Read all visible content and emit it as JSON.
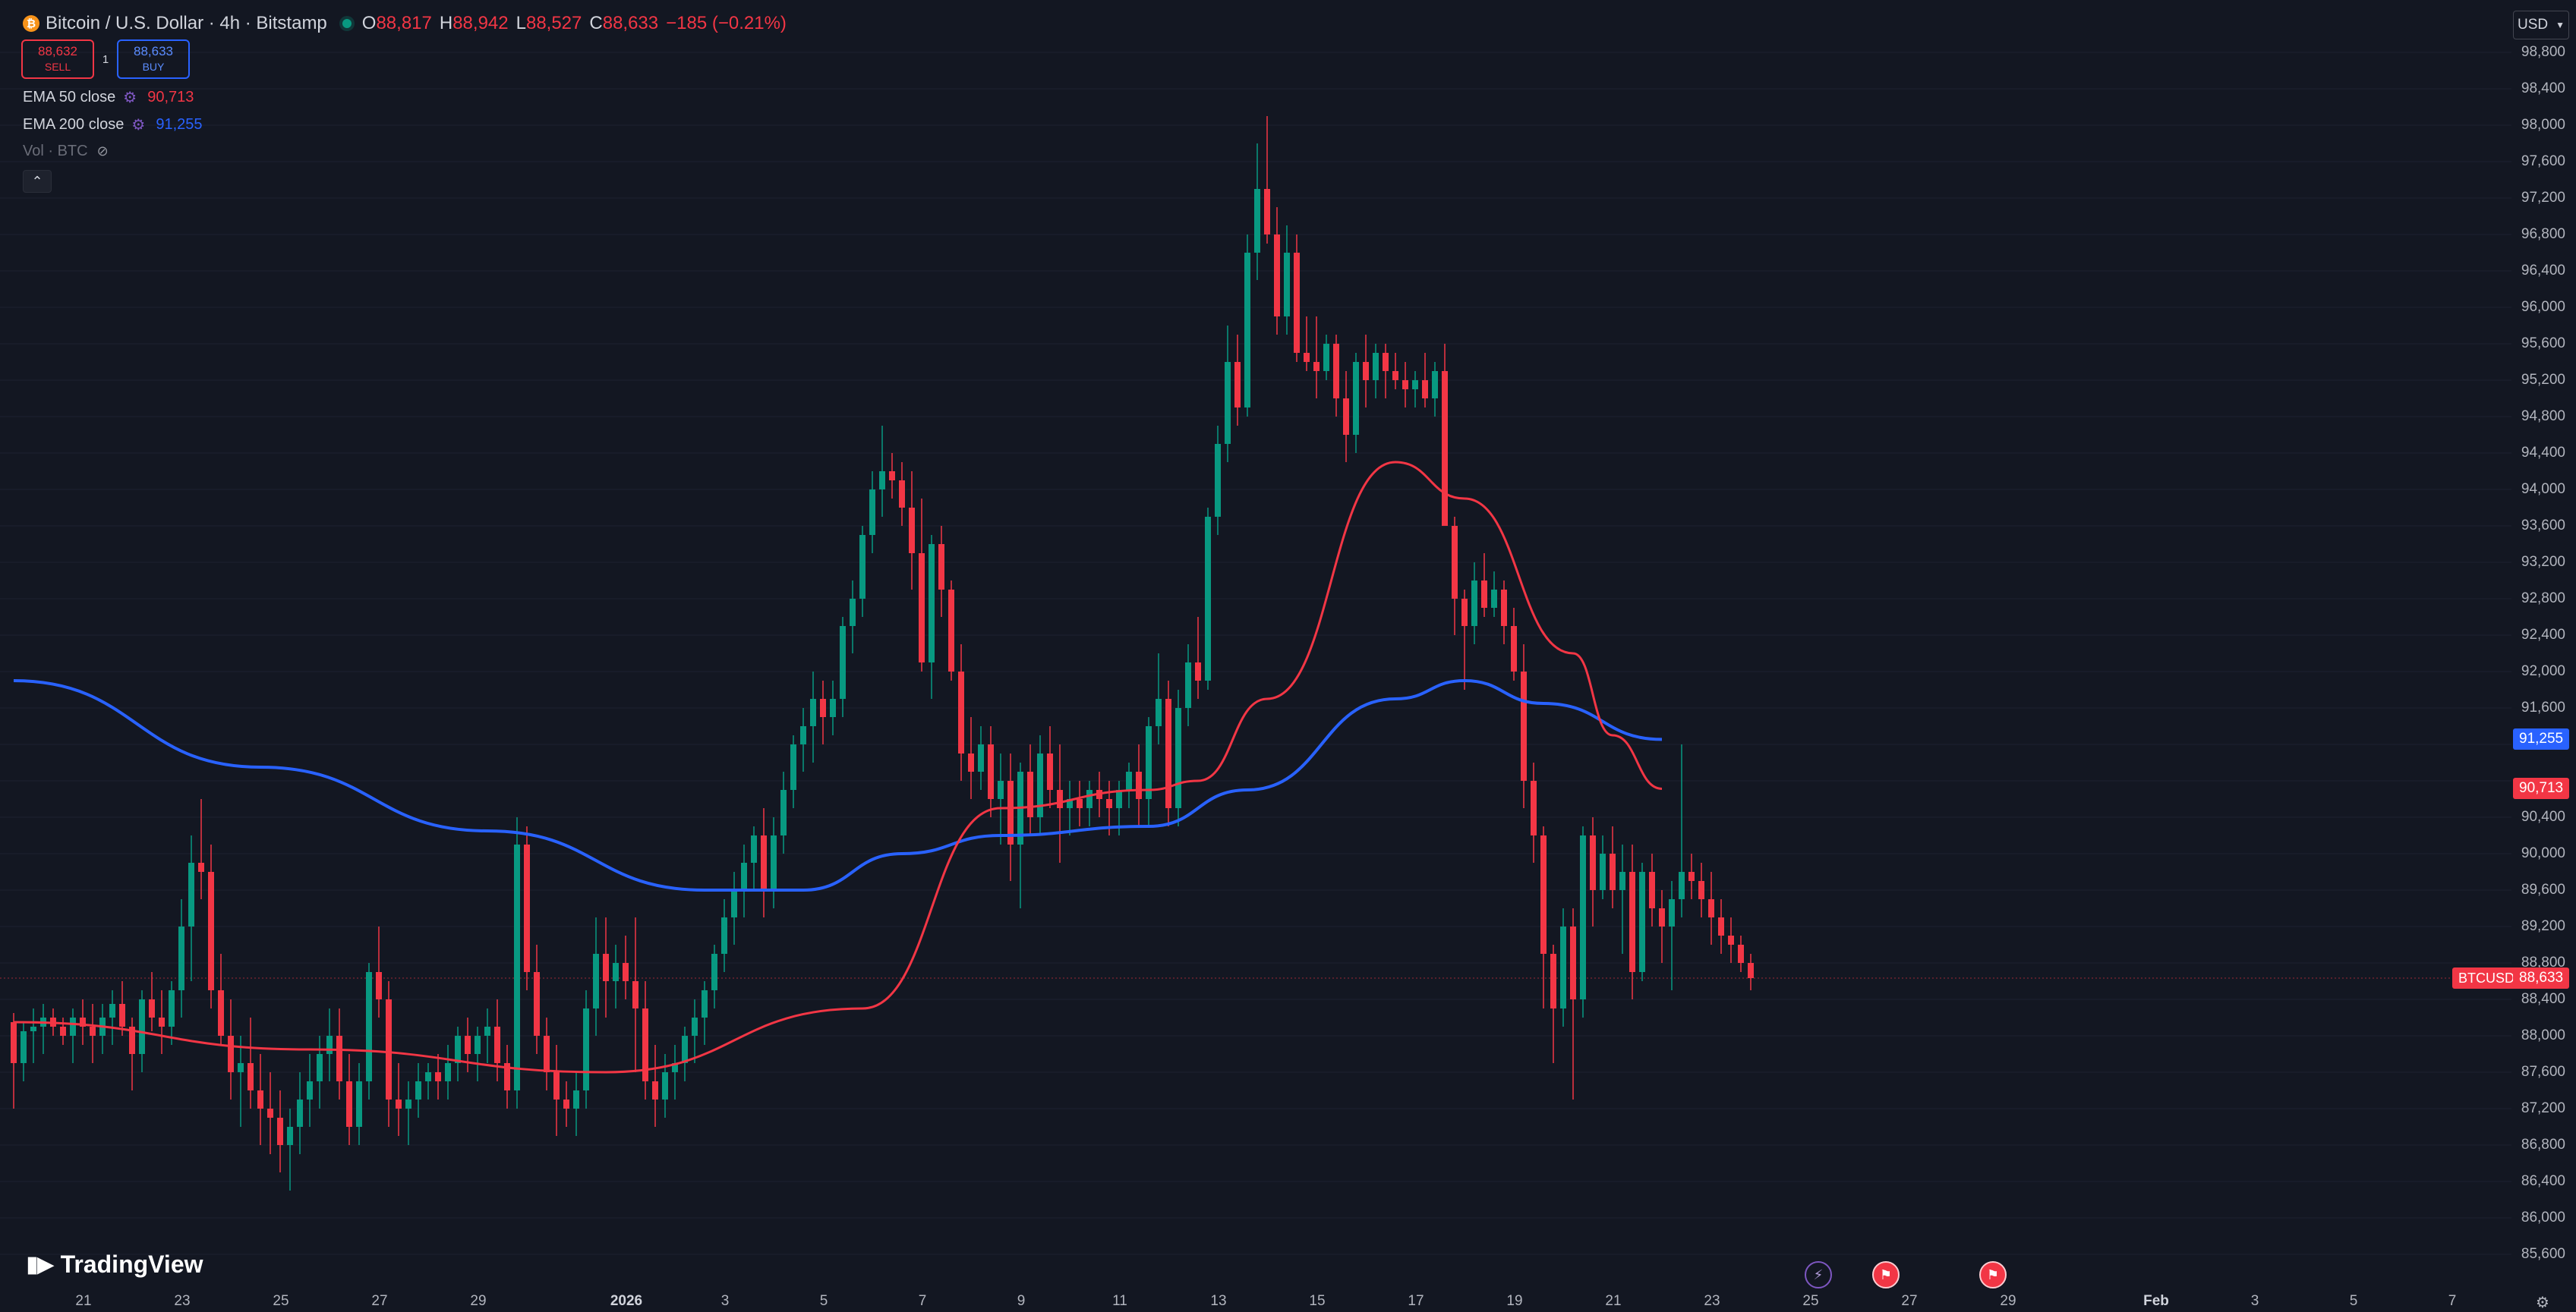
{
  "header": {
    "title": "Bitcoin / U.S. Dollar · 4h · Bitstamp",
    "symbol_icon": "bitcoin-icon",
    "open_key": "O",
    "open": "88,817",
    "high_key": "H",
    "high": "88,942",
    "low_key": "L",
    "low": "88,527",
    "close_key": "C",
    "close": "88,633",
    "change": "−185 (−0.21%)"
  },
  "trade": {
    "sell_price": "88,632",
    "sell_label": "SELL",
    "spread": "1",
    "buy_price": "88,633",
    "buy_label": "BUY"
  },
  "indicators": {
    "ema50": {
      "name": "EMA 50 close",
      "value": "90,713",
      "color": "#f23645"
    },
    "ema200": {
      "name": "EMA 200 close",
      "value": "91,255",
      "color": "#2962ff"
    },
    "volume": {
      "name": "Vol · BTC"
    }
  },
  "price_scale": {
    "currency": "USD",
    "ticks": [
      "98,800",
      "98,400",
      "98,000",
      "97,600",
      "97,200",
      "96,800",
      "96,400",
      "96,000",
      "95,600",
      "95,200",
      "94,800",
      "94,400",
      "94,000",
      "93,600",
      "93,200",
      "92,800",
      "92,400",
      "92,000",
      "91,600",
      "90,400",
      "90,000",
      "89,600",
      "89,200",
      "88,800",
      "88,400",
      "88,000",
      "87,600",
      "87,200",
      "86,800",
      "86,400",
      "86,000",
      "85,600"
    ],
    "ema200_label": "91,255",
    "ema50_label": "90,713",
    "last_price_label": "88,633",
    "symbol_label": "BTCUSD"
  },
  "time_axis": {
    "ticks": [
      "21",
      "23",
      "25",
      "27",
      "29",
      "2026",
      "3",
      "5",
      "7",
      "9",
      "11",
      "13",
      "15",
      "17",
      "19",
      "21",
      "23",
      "25",
      "27",
      "29",
      "Feb",
      "3",
      "5",
      "7"
    ]
  },
  "branding": {
    "logo_text": "TradingView"
  },
  "colors": {
    "up": "#089981",
    "down": "#f23645",
    "ema50": "#f23645",
    "ema200": "#2962ff",
    "background": "#131722"
  },
  "chart_data": {
    "type": "candlestick",
    "symbol": "BTCUSD",
    "timeframe": "4h",
    "ylim": [
      85400,
      99000
    ],
    "ohlc": [
      [
        88150,
        88250,
        87200,
        87700
      ],
      [
        87700,
        88150,
        87500,
        88050
      ],
      [
        88050,
        88300,
        87700,
        88100
      ],
      [
        88100,
        88350,
        87800,
        88200
      ],
      [
        88200,
        88300,
        88000,
        88100
      ],
      [
        88100,
        88200,
        87900,
        88000
      ],
      [
        88000,
        88300,
        87700,
        88200
      ],
      [
        88200,
        88400,
        87900,
        88100
      ],
      [
        88100,
        88350,
        87700,
        88000
      ],
      [
        88000,
        88350,
        87800,
        88200
      ],
      [
        88200,
        88500,
        87900,
        88350
      ],
      [
        88350,
        88600,
        88000,
        88100
      ],
      [
        88100,
        88200,
        87400,
        87800
      ],
      [
        87800,
        88500,
        87600,
        88400
      ],
      [
        88400,
        88700,
        88050,
        88200
      ],
      [
        88200,
        88500,
        87800,
        88100
      ],
      [
        88100,
        88600,
        87900,
        88500
      ],
      [
        88500,
        89500,
        88200,
        89200
      ],
      [
        89200,
        90200,
        88600,
        89900
      ],
      [
        89900,
        90600,
        89500,
        89800
      ],
      [
        89800,
        90100,
        88300,
        88500
      ],
      [
        88500,
        88900,
        87900,
        88000
      ],
      [
        88000,
        88400,
        87300,
        87600
      ],
      [
        87600,
        88000,
        87000,
        87700
      ],
      [
        87700,
        88200,
        87200,
        87400
      ],
      [
        87400,
        87800,
        86800,
        87200
      ],
      [
        87200,
        87600,
        86700,
        87100
      ],
      [
        87100,
        87400,
        86500,
        86800
      ],
      [
        86800,
        87200,
        86300,
        87000
      ],
      [
        87000,
        87600,
        86700,
        87300
      ],
      [
        87300,
        87800,
        87000,
        87500
      ],
      [
        87500,
        88000,
        87200,
        87800
      ],
      [
        87800,
        88300,
        87500,
        88000
      ],
      [
        88000,
        88300,
        87300,
        87500
      ],
      [
        87500,
        87800,
        86800,
        87000
      ],
      [
        87000,
        87700,
        86800,
        87500
      ],
      [
        87500,
        88800,
        87300,
        88700
      ],
      [
        88700,
        89200,
        88200,
        88400
      ],
      [
        88400,
        88600,
        87000,
        87300
      ],
      [
        87300,
        87700,
        86900,
        87200
      ],
      [
        87200,
        87500,
        86800,
        87300
      ],
      [
        87300,
        87700,
        87100,
        87500
      ],
      [
        87500,
        87700,
        87300,
        87600
      ],
      [
        87600,
        87800,
        87300,
        87500
      ],
      [
        87500,
        87900,
        87300,
        87700
      ],
      [
        87700,
        88100,
        87500,
        88000
      ],
      [
        88000,
        88200,
        87600,
        87800
      ],
      [
        87800,
        88100,
        87500,
        88000
      ],
      [
        88000,
        88300,
        87700,
        88100
      ],
      [
        88100,
        88400,
        87500,
        87700
      ],
      [
        87700,
        87900,
        87200,
        87400
      ],
      [
        87400,
        90400,
        87200,
        90100
      ],
      [
        90100,
        90300,
        88500,
        88700
      ],
      [
        88700,
        89000,
        87800,
        88000
      ],
      [
        88000,
        88200,
        87400,
        87600
      ],
      [
        87600,
        87900,
        86900,
        87300
      ],
      [
        87300,
        87500,
        87000,
        87200
      ],
      [
        87200,
        87600,
        86900,
        87400
      ],
      [
        87400,
        88500,
        87200,
        88300
      ],
      [
        88300,
        89300,
        88000,
        88900
      ],
      [
        88900,
        89300,
        88200,
        88600
      ],
      [
        88600,
        89000,
        88300,
        88800
      ],
      [
        88800,
        89100,
        88400,
        88600
      ],
      [
        88600,
        89300,
        87600,
        88300
      ],
      [
        88300,
        88600,
        87300,
        87500
      ],
      [
        87500,
        87900,
        87000,
        87300
      ],
      [
        87300,
        87800,
        87100,
        87600
      ],
      [
        87600,
        87900,
        87300,
        87700
      ],
      [
        87700,
        88100,
        87500,
        88000
      ],
      [
        88000,
        88400,
        87700,
        88200
      ],
      [
        88200,
        88600,
        87900,
        88500
      ],
      [
        88500,
        89000,
        88300,
        88900
      ],
      [
        88900,
        89500,
        88700,
        89300
      ],
      [
        89300,
        89800,
        89000,
        89600
      ],
      [
        89600,
        90100,
        89300,
        89900
      ],
      [
        89900,
        90300,
        89600,
        90200
      ],
      [
        90200,
        90500,
        89300,
        89600
      ],
      [
        89600,
        90400,
        89400,
        90200
      ],
      [
        90200,
        90900,
        90000,
        90700
      ],
      [
        90700,
        91300,
        90500,
        91200
      ],
      [
        91200,
        91600,
        90900,
        91400
      ],
      [
        91400,
        92000,
        91000,
        91700
      ],
      [
        91700,
        91900,
        91200,
        91500
      ],
      [
        91500,
        91900,
        91300,
        91700
      ],
      [
        91700,
        92600,
        91500,
        92500
      ],
      [
        92500,
        93000,
        92200,
        92800
      ],
      [
        92800,
        93600,
        92600,
        93500
      ],
      [
        93500,
        94200,
        93300,
        94000
      ],
      [
        94000,
        94700,
        93700,
        94200
      ],
      [
        94200,
        94400,
        93900,
        94100
      ],
      [
        94100,
        94300,
        93600,
        93800
      ],
      [
        93800,
        94200,
        92900,
        93300
      ],
      [
        93300,
        93900,
        92000,
        92100
      ],
      [
        92100,
        93500,
        91700,
        93400
      ],
      [
        93400,
        93600,
        92600,
        92900
      ],
      [
        92900,
        93000,
        91900,
        92000
      ],
      [
        92000,
        92300,
        90800,
        91100
      ],
      [
        91100,
        91500,
        90600,
        90900
      ],
      [
        90900,
        91400,
        90700,
        91200
      ],
      [
        91200,
        91400,
        90400,
        90600
      ],
      [
        90600,
        91100,
        90100,
        90800
      ],
      [
        90800,
        91100,
        89700,
        90100
      ],
      [
        90100,
        91000,
        89400,
        90900
      ],
      [
        90900,
        91200,
        90200,
        90400
      ],
      [
        90400,
        91300,
        90200,
        91100
      ],
      [
        91100,
        91400,
        90500,
        90700
      ],
      [
        90700,
        91200,
        89900,
        90500
      ],
      [
        90500,
        90800,
        90200,
        90600
      ],
      [
        90600,
        90800,
        90300,
        90500
      ],
      [
        90500,
        90800,
        90300,
        90700
      ],
      [
        90700,
        90900,
        90400,
        90600
      ],
      [
        90600,
        90800,
        90200,
        90500
      ],
      [
        90500,
        90800,
        90200,
        90700
      ],
      [
        90700,
        91000,
        90500,
        90900
      ],
      [
        90900,
        91200,
        90300,
        90600
      ],
      [
        90600,
        91500,
        90300,
        91400
      ],
      [
        91400,
        92200,
        91200,
        91700
      ],
      [
        91700,
        91900,
        90300,
        90500
      ],
      [
        90500,
        91800,
        90300,
        91600
      ],
      [
        91600,
        92300,
        91400,
        92100
      ],
      [
        92100,
        92600,
        91700,
        91900
      ],
      [
        91900,
        93800,
        91800,
        93700
      ],
      [
        93700,
        94700,
        93500,
        94500
      ],
      [
        94500,
        95800,
        94300,
        95400
      ],
      [
        95400,
        95700,
        94700,
        94900
      ],
      [
        94900,
        96800,
        94800,
        96600
      ],
      [
        96600,
        97800,
        96300,
        97300
      ],
      [
        97300,
        98100,
        96700,
        96800
      ],
      [
        96800,
        97100,
        95700,
        95900
      ],
      [
        95900,
        96900,
        95700,
        96600
      ],
      [
        96600,
        96800,
        95400,
        95500
      ],
      [
        95500,
        95900,
        95300,
        95400
      ],
      [
        95400,
        95900,
        95000,
        95300
      ],
      [
        95300,
        95700,
        95200,
        95600
      ],
      [
        95600,
        95700,
        94800,
        95000
      ],
      [
        95000,
        95300,
        94300,
        94600
      ],
      [
        94600,
        95500,
        94400,
        95400
      ],
      [
        95400,
        95700,
        94900,
        95200
      ],
      [
        95200,
        95600,
        95000,
        95500
      ],
      [
        95500,
        95600,
        95000,
        95300
      ],
      [
        95300,
        95500,
        95100,
        95200
      ],
      [
        95200,
        95400,
        94900,
        95100
      ],
      [
        95100,
        95300,
        94900,
        95200
      ],
      [
        95200,
        95500,
        94900,
        95000
      ],
      [
        95000,
        95400,
        94800,
        95300
      ],
      [
        95300,
        95600,
        93700,
        93600
      ],
      [
        93600,
        93700,
        92400,
        92800
      ],
      [
        92800,
        92900,
        91800,
        92500
      ],
      [
        92500,
        93200,
        92300,
        93000
      ],
      [
        93000,
        93300,
        92600,
        92700
      ],
      [
        92700,
        93100,
        92600,
        92900
      ],
      [
        92900,
        93000,
        92300,
        92500
      ],
      [
        92500,
        92700,
        91900,
        92000
      ],
      [
        92000,
        92300,
        90500,
        90800
      ],
      [
        90800,
        91000,
        89900,
        90200
      ],
      [
        90200,
        90300,
        88300,
        88900
      ],
      [
        88900,
        89000,
        87700,
        88300
      ],
      [
        88300,
        89400,
        88100,
        89200
      ],
      [
        89200,
        89400,
        87300,
        88400
      ],
      [
        88400,
        90300,
        88200,
        90200
      ],
      [
        90200,
        90400,
        89200,
        89600
      ],
      [
        89600,
        90200,
        89500,
        90000
      ],
      [
        90000,
        90300,
        89400,
        89600
      ],
      [
        89600,
        90100,
        88900,
        89800
      ],
      [
        89800,
        90100,
        88400,
        88700
      ],
      [
        88700,
        89900,
        88600,
        89800
      ],
      [
        89800,
        90000,
        89200,
        89400
      ],
      [
        89400,
        89600,
        88800,
        89200
      ],
      [
        89200,
        89700,
        88500,
        89500
      ],
      [
        89500,
        91200,
        89300,
        89800
      ],
      [
        89800,
        90000,
        89500,
        89700
      ],
      [
        89700,
        89900,
        89300,
        89500
      ],
      [
        89500,
        89800,
        89000,
        89300
      ],
      [
        89300,
        89500,
        88900,
        89100
      ],
      [
        89100,
        89300,
        88800,
        89000
      ],
      [
        89000,
        89100,
        88700,
        88800
      ],
      [
        88800,
        88900,
        88500,
        88633
      ]
    ],
    "ema50": [
      [
        0,
        88150
      ],
      [
        30,
        87850
      ],
      [
        60,
        87600
      ],
      [
        86,
        88300
      ],
      [
        100,
        90500
      ],
      [
        115,
        90700
      ],
      [
        120,
        90800
      ],
      [
        127,
        91700
      ],
      [
        140,
        94300
      ],
      [
        147,
        93900
      ],
      [
        158,
        92200
      ],
      [
        162,
        91300
      ],
      [
        167,
        90713
      ]
    ],
    "ema200": [
      [
        0,
        91900
      ],
      [
        25,
        90950
      ],
      [
        48,
        90250
      ],
      [
        70,
        89600
      ],
      [
        80,
        89600
      ],
      [
        90,
        90000
      ],
      [
        100,
        90200
      ],
      [
        115,
        90300
      ],
      [
        125,
        90700
      ],
      [
        140,
        91700
      ],
      [
        147,
        91900
      ],
      [
        155,
        91650
      ],
      [
        167,
        91255
      ]
    ]
  }
}
